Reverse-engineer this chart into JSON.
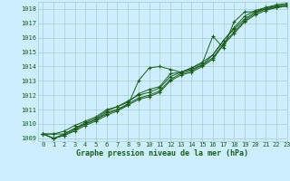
{
  "title": "Graphe pression niveau de la mer (hPa)",
  "bg_color": "#cceeff",
  "grid_color": "#aacccc",
  "line_color": "#1a5c1a",
  "xlim": [
    -0.5,
    23
  ],
  "ylim": [
    1008.8,
    1018.5
  ],
  "yticks": [
    1009,
    1010,
    1011,
    1012,
    1013,
    1014,
    1015,
    1016,
    1017,
    1018
  ],
  "xticks": [
    0,
    1,
    2,
    3,
    4,
    5,
    6,
    7,
    8,
    9,
    10,
    11,
    12,
    13,
    14,
    15,
    16,
    17,
    18,
    19,
    20,
    21,
    22,
    23
  ],
  "series": [
    [
      1009.3,
      1009.3,
      1009.3,
      1009.7,
      1010.0,
      1010.3,
      1010.8,
      1011.0,
      1011.3,
      1013.0,
      1013.9,
      1014.0,
      1013.8,
      1013.6,
      1013.9,
      1014.2,
      1016.1,
      1015.3,
      1017.1,
      1017.8,
      1017.8,
      1018.0,
      1018.1,
      1018.2
    ],
    [
      1009.3,
      1009.3,
      1009.5,
      1009.9,
      1010.2,
      1010.5,
      1011.0,
      1011.2,
      1011.5,
      1012.1,
      1012.4,
      1012.6,
      1013.5,
      1013.6,
      1013.8,
      1014.1,
      1014.8,
      1015.8,
      1016.7,
      1017.5,
      1017.9,
      1018.1,
      1018.2,
      1018.3
    ],
    [
      1009.3,
      1009.0,
      1009.2,
      1009.5,
      1009.9,
      1010.2,
      1010.6,
      1010.9,
      1011.3,
      1011.7,
      1011.9,
      1012.2,
      1013.0,
      1013.4,
      1013.6,
      1014.0,
      1014.5,
      1015.5,
      1016.3,
      1017.1,
      1017.6,
      1017.9,
      1018.1,
      1018.2
    ],
    [
      1009.3,
      1009.0,
      1009.2,
      1009.6,
      1010.0,
      1010.3,
      1010.7,
      1011.0,
      1011.4,
      1011.8,
      1012.0,
      1012.3,
      1013.1,
      1013.5,
      1013.7,
      1014.1,
      1014.6,
      1015.6,
      1016.4,
      1017.2,
      1017.7,
      1018.0,
      1018.2,
      1018.3
    ],
    [
      1009.3,
      1009.0,
      1009.3,
      1009.7,
      1010.1,
      1010.4,
      1010.9,
      1011.2,
      1011.6,
      1012.0,
      1012.2,
      1012.5,
      1013.3,
      1013.6,
      1013.9,
      1014.3,
      1014.8,
      1015.8,
      1016.6,
      1017.3,
      1017.8,
      1018.1,
      1018.3,
      1018.4
    ]
  ],
  "tick_fontsize": 5.0,
  "label_fontsize": 6.0,
  "marker_size": 3.5,
  "line_width": 0.7
}
